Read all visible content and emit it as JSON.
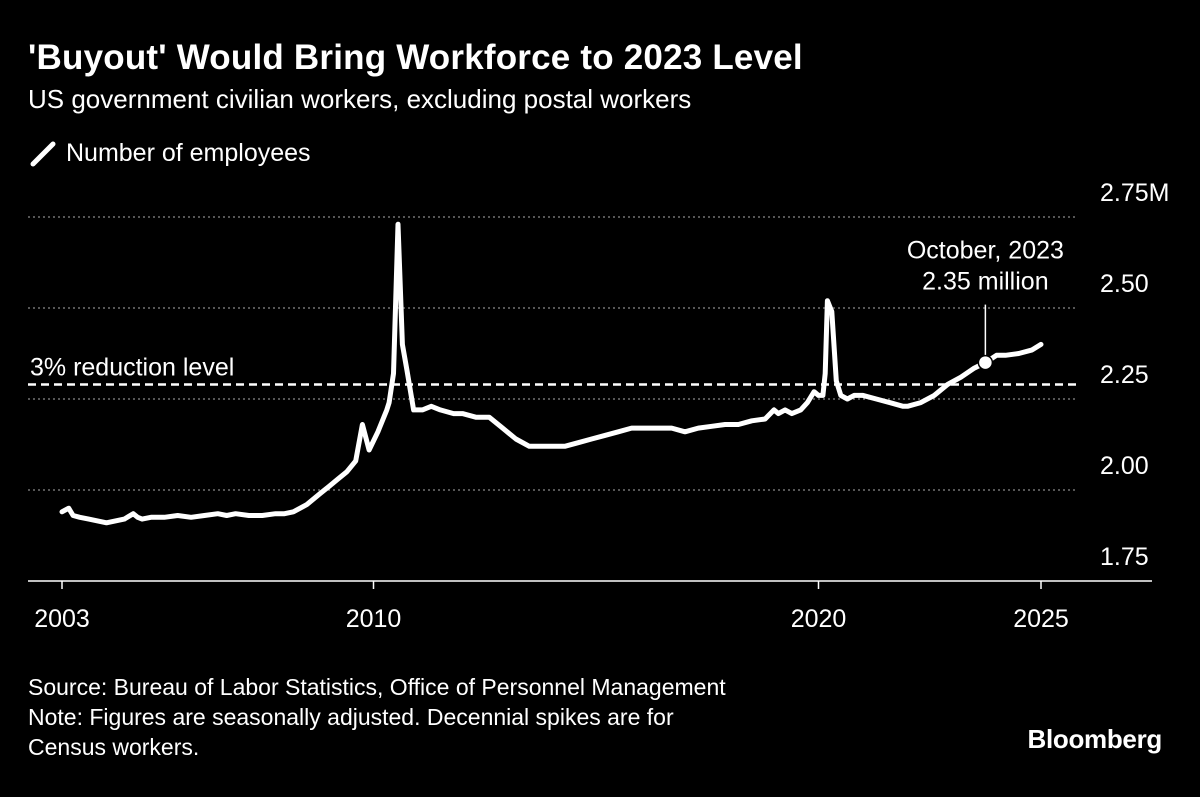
{
  "header": {
    "title": "'Buyout' Would Bring Workforce to 2023 Level",
    "subtitle": "US government civilian workers, excluding postal workers"
  },
  "legend": {
    "label": "Number of employees",
    "color": "#ffffff"
  },
  "annotations": {
    "reference_line_label": "3% reduction level",
    "point_label_line1": "October, 2023",
    "point_label_line2": "2.35 million"
  },
  "footer": {
    "source": "Source: Bureau of Labor Statistics, Office of Personnel Management",
    "note_line1": "Note: Figures are seasonally adjusted. Decennial spikes are for",
    "note_line2": "Census workers.",
    "brand": "Bloomberg"
  },
  "chart_data": {
    "type": "line",
    "title": "'Buyout' Would Bring Workforce to 2023 Level",
    "subtitle": "US government civilian workers, excluding postal workers",
    "xlabel": "",
    "ylabel": "",
    "xlim": [
      2003,
      2025
    ],
    "ylim": [
      1.75,
      2.75
    ],
    "x_ticks": [
      2003,
      2010,
      2020,
      2025
    ],
    "x_tick_labels": [
      "2003",
      "2010",
      "2020",
      "2025"
    ],
    "y_ticks": [
      1.75,
      2.0,
      2.25,
      2.5,
      2.75
    ],
    "y_tick_labels": [
      "1.75",
      "2.00",
      "2.25",
      "2.50",
      "2.75M"
    ],
    "grid": "horizontal dotted",
    "legend_position": "top-left",
    "reference_line": {
      "value": 2.29,
      "label": "3% reduction level",
      "style": "dashed"
    },
    "highlight_point": {
      "x": 2023.75,
      "y": 2.35,
      "label": "October, 2023 2.35 million"
    },
    "series": [
      {
        "name": "Number of employees",
        "color": "#ffffff",
        "x": [
          2003.0,
          2003.15,
          2003.25,
          2003.4,
          2003.6,
          2003.8,
          2004.0,
          2004.2,
          2004.4,
          2004.6,
          2004.7,
          2004.8,
          2005.0,
          2005.3,
          2005.6,
          2005.9,
          2006.2,
          2006.5,
          2006.7,
          2006.9,
          2007.2,
          2007.5,
          2007.8,
          2008.0,
          2008.2,
          2008.5,
          2008.8,
          2009.0,
          2009.2,
          2009.4,
          2009.6,
          2009.75,
          2009.9,
          2010.1,
          2010.3,
          2010.35,
          2010.45,
          2010.55,
          2010.65,
          2010.75,
          2010.9,
          2011.1,
          2011.3,
          2011.5,
          2011.8,
          2012.0,
          2012.3,
          2012.6,
          2012.9,
          2013.2,
          2013.5,
          2013.8,
          2014.0,
          2014.3,
          2014.6,
          2014.9,
          2015.2,
          2015.5,
          2015.8,
          2016.1,
          2016.4,
          2016.7,
          2017.0,
          2017.3,
          2017.6,
          2017.9,
          2018.2,
          2018.5,
          2018.8,
          2019.0,
          2019.1,
          2019.25,
          2019.4,
          2019.6,
          2019.75,
          2019.9,
          2020.0,
          2020.1,
          2020.15,
          2020.2,
          2020.3,
          2020.4,
          2020.5,
          2020.65,
          2020.8,
          2021.0,
          2021.3,
          2021.6,
          2021.9,
          2022.0,
          2022.3,
          2022.6,
          2022.9,
          2023.2,
          2023.5,
          2023.75,
          2024.0,
          2024.2,
          2024.5,
          2024.8,
          2025.0
        ],
        "values": [
          1.94,
          1.95,
          1.93,
          1.925,
          1.92,
          1.915,
          1.91,
          1.915,
          1.92,
          1.935,
          1.925,
          1.92,
          1.925,
          1.925,
          1.93,
          1.925,
          1.93,
          1.935,
          1.93,
          1.935,
          1.93,
          1.93,
          1.935,
          1.935,
          1.94,
          1.96,
          1.99,
          2.01,
          2.03,
          2.05,
          2.08,
          2.18,
          2.11,
          2.16,
          2.22,
          2.24,
          2.32,
          2.73,
          2.4,
          2.33,
          2.22,
          2.22,
          2.23,
          2.22,
          2.21,
          2.21,
          2.2,
          2.2,
          2.17,
          2.14,
          2.12,
          2.12,
          2.12,
          2.12,
          2.13,
          2.14,
          2.15,
          2.16,
          2.17,
          2.17,
          2.17,
          2.17,
          2.16,
          2.17,
          2.175,
          2.18,
          2.18,
          2.19,
          2.195,
          2.22,
          2.21,
          2.22,
          2.21,
          2.22,
          2.24,
          2.27,
          2.26,
          2.26,
          2.32,
          2.52,
          2.49,
          2.3,
          2.26,
          2.25,
          2.26,
          2.26,
          2.25,
          2.24,
          2.23,
          2.23,
          2.24,
          2.26,
          2.29,
          2.31,
          2.335,
          2.35,
          2.37,
          2.37,
          2.375,
          2.385,
          2.4
        ]
      }
    ]
  }
}
